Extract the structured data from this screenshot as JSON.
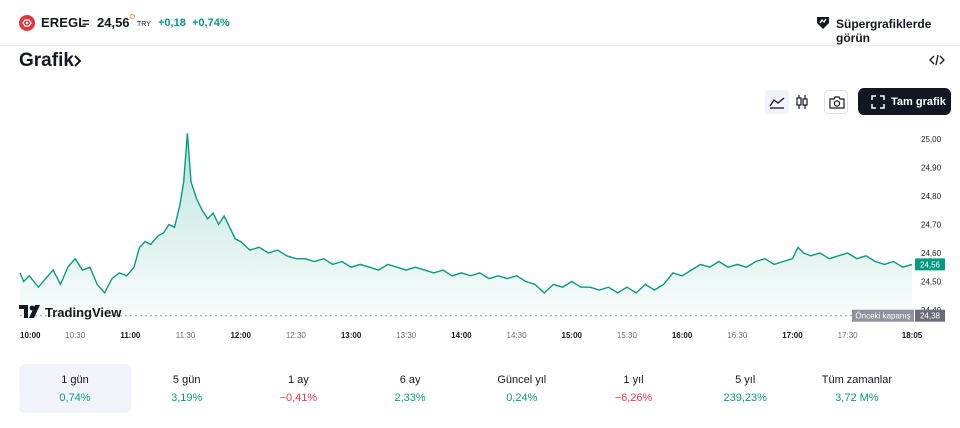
{
  "header": {
    "symbol": "EREGL",
    "separator": "=",
    "price": "24,56",
    "currency": "TRY",
    "change": "+0,18",
    "change_pct": "+0,74%",
    "supercharts_label": "Süpergrafiklerde görün"
  },
  "section": {
    "title": "Grafik"
  },
  "toolbar": {
    "fullscreen_label": "Tam grafik"
  },
  "brand": {
    "name": "TradingView"
  },
  "colors": {
    "up": "#089981",
    "down": "#f23645",
    "line": "#089981",
    "logo": "#e0363f"
  },
  "chart_data": {
    "type": "area",
    "x_ticks": [
      "10:00",
      "10:30",
      "11:00",
      "11:30",
      "12:00",
      "12:30",
      "13:00",
      "13:30",
      "14:00",
      "14:30",
      "15:00",
      "15:30",
      "16:00",
      "16:30",
      "17:00",
      "17:30",
      "18:05"
    ],
    "y_ticks": [
      "25,00",
      "24,90",
      "24,80",
      "24,70",
      "24,60",
      "24,50",
      "24,40"
    ],
    "ylim": [
      24.38,
      25.03
    ],
    "last_price_label": "24,56",
    "previous_close": {
      "label": "Önceki kapanış",
      "value": "24,38"
    },
    "series": [
      {
        "points": [
          [
            "10:00",
            24.53
          ],
          [
            "10:02",
            24.5
          ],
          [
            "10:05",
            24.52
          ],
          [
            "10:10",
            24.48
          ],
          [
            "10:14",
            24.51
          ],
          [
            "10:18",
            24.54
          ],
          [
            "10:22",
            24.49
          ],
          [
            "10:26",
            24.55
          ],
          [
            "10:30",
            24.58
          ],
          [
            "10:34",
            24.54
          ],
          [
            "10:38",
            24.55
          ],
          [
            "10:42",
            24.49
          ],
          [
            "10:46",
            24.46
          ],
          [
            "10:50",
            24.51
          ],
          [
            "10:54",
            24.53
          ],
          [
            "10:58",
            24.52
          ],
          [
            "11:02",
            24.55
          ],
          [
            "11:05",
            24.62
          ],
          [
            "11:08",
            24.64
          ],
          [
            "11:11",
            24.63
          ],
          [
            "11:15",
            24.66
          ],
          [
            "11:18",
            24.67
          ],
          [
            "11:21",
            24.7
          ],
          [
            "11:24",
            24.69
          ],
          [
            "11:27",
            24.77
          ],
          [
            "11:29",
            24.85
          ],
          [
            "11:31",
            25.02
          ],
          [
            "11:33",
            24.85
          ],
          [
            "11:36",
            24.79
          ],
          [
            "11:39",
            24.75
          ],
          [
            "11:42",
            24.72
          ],
          [
            "11:45",
            24.74
          ],
          [
            "11:48",
            24.7
          ],
          [
            "11:51",
            24.73
          ],
          [
            "11:54",
            24.69
          ],
          [
            "11:57",
            24.65
          ],
          [
            "12:00",
            24.64
          ],
          [
            "12:05",
            24.61
          ],
          [
            "12:10",
            24.62
          ],
          [
            "12:15",
            24.6
          ],
          [
            "12:20",
            24.61
          ],
          [
            "12:25",
            24.59
          ],
          [
            "12:30",
            24.58
          ],
          [
            "12:35",
            24.58
          ],
          [
            "12:40",
            24.57
          ],
          [
            "12:45",
            24.58
          ],
          [
            "12:50",
            24.56
          ],
          [
            "12:55",
            24.57
          ],
          [
            "13:00",
            24.55
          ],
          [
            "13:05",
            24.56
          ],
          [
            "13:10",
            24.55
          ],
          [
            "13:15",
            24.54
          ],
          [
            "13:20",
            24.56
          ],
          [
            "13:25",
            24.55
          ],
          [
            "13:30",
            24.54
          ],
          [
            "13:35",
            24.55
          ],
          [
            "13:40",
            24.54
          ],
          [
            "13:45",
            24.53
          ],
          [
            "13:50",
            24.54
          ],
          [
            "13:55",
            24.52
          ],
          [
            "14:00",
            24.53
          ],
          [
            "14:05",
            24.52
          ],
          [
            "14:10",
            24.53
          ],
          [
            "14:15",
            24.51
          ],
          [
            "14:20",
            24.52
          ],
          [
            "14:25",
            24.51
          ],
          [
            "14:30",
            24.52
          ],
          [
            "14:35",
            24.5
          ],
          [
            "14:40",
            24.49
          ],
          [
            "14:45",
            24.46
          ],
          [
            "14:50",
            24.49
          ],
          [
            "14:55",
            24.48
          ],
          [
            "15:00",
            24.5
          ],
          [
            "15:05",
            24.48
          ],
          [
            "15:10",
            24.48
          ],
          [
            "15:15",
            24.47
          ],
          [
            "15:20",
            24.48
          ],
          [
            "15:25",
            24.46
          ],
          [
            "15:30",
            24.48
          ],
          [
            "15:35",
            24.46
          ],
          [
            "15:40",
            24.49
          ],
          [
            "15:45",
            24.47
          ],
          [
            "15:50",
            24.49
          ],
          [
            "15:55",
            24.53
          ],
          [
            "16:00",
            24.52
          ],
          [
            "16:05",
            24.54
          ],
          [
            "16:10",
            24.56
          ],
          [
            "16:15",
            24.55
          ],
          [
            "16:20",
            24.57
          ],
          [
            "16:25",
            24.55
          ],
          [
            "16:30",
            24.56
          ],
          [
            "16:35",
            24.55
          ],
          [
            "16:40",
            24.57
          ],
          [
            "16:45",
            24.58
          ],
          [
            "16:50",
            24.56
          ],
          [
            "16:55",
            24.57
          ],
          [
            "17:00",
            24.58
          ],
          [
            "17:03",
            24.62
          ],
          [
            "17:06",
            24.6
          ],
          [
            "17:10",
            24.59
          ],
          [
            "17:15",
            24.6
          ],
          [
            "17:20",
            24.58
          ],
          [
            "17:25",
            24.59
          ],
          [
            "17:30",
            24.6
          ],
          [
            "17:35",
            24.58
          ],
          [
            "17:40",
            24.59
          ],
          [
            "17:45",
            24.57
          ],
          [
            "17:50",
            24.56
          ],
          [
            "17:55",
            24.57
          ],
          [
            "18:00",
            24.55
          ],
          [
            "18:05",
            24.56
          ]
        ]
      }
    ]
  },
  "periods": [
    {
      "label": "1 gün",
      "value": "0,74%",
      "dir": "up"
    },
    {
      "label": "5 gün",
      "value": "3,19%",
      "dir": "up"
    },
    {
      "label": "1 ay",
      "value": "−0,41%",
      "dir": "down"
    },
    {
      "label": "6 ay",
      "value": "2,33%",
      "dir": "up"
    },
    {
      "label": "Güncel yıl",
      "value": "0,24%",
      "dir": "up"
    },
    {
      "label": "1 yıl",
      "value": "−6,26%",
      "dir": "down"
    },
    {
      "label": "5 yıl",
      "value": "239,23%",
      "dir": "up"
    },
    {
      "label": "Tüm zamanlar",
      "value": "3,72 M%",
      "dir": "up"
    }
  ]
}
